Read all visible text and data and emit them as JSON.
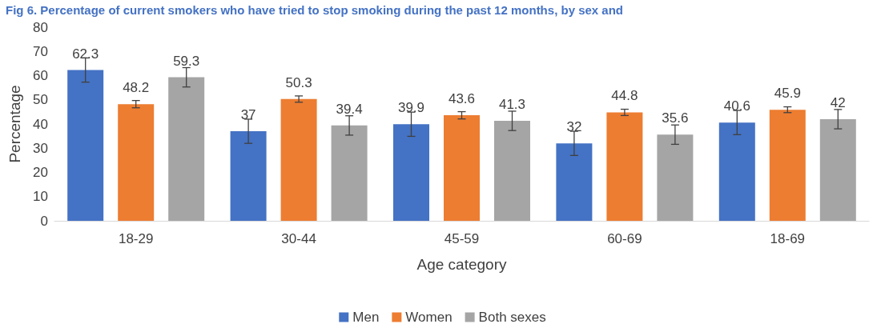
{
  "chart_data": {
    "type": "bar",
    "title": "Fig 6. Percentage of current smokers who have tried to stop smoking during the past 12 months, by sex and",
    "xlabel": "Age category",
    "ylabel": "Percentage",
    "categories": [
      "18-29",
      "30-44",
      "45-59",
      "60-69",
      "18-69"
    ],
    "series": [
      {
        "name": "Men",
        "color": "#4472c4",
        "values": [
          62.3,
          37,
          39.9,
          32,
          40.6
        ],
        "errors": [
          5,
          5,
          5,
          5,
          5
        ]
      },
      {
        "name": "Women",
        "color": "#ed7d31",
        "values": [
          48.2,
          50.3,
          43.6,
          44.8,
          45.9
        ],
        "errors": [
          1.5,
          1.3,
          1.5,
          1.3,
          1.2
        ]
      },
      {
        "name": "Both sexes",
        "color": "#a5a5a5",
        "values": [
          59.3,
          39.4,
          41.3,
          35.6,
          42
        ],
        "errors": [
          4,
          4,
          4,
          4,
          4
        ]
      }
    ],
    "ylim": [
      0,
      80
    ],
    "yticks": [
      0,
      10,
      20,
      30,
      40,
      50,
      60,
      70,
      80
    ],
    "data_labels": true,
    "grid": false,
    "legend": "bottom"
  }
}
